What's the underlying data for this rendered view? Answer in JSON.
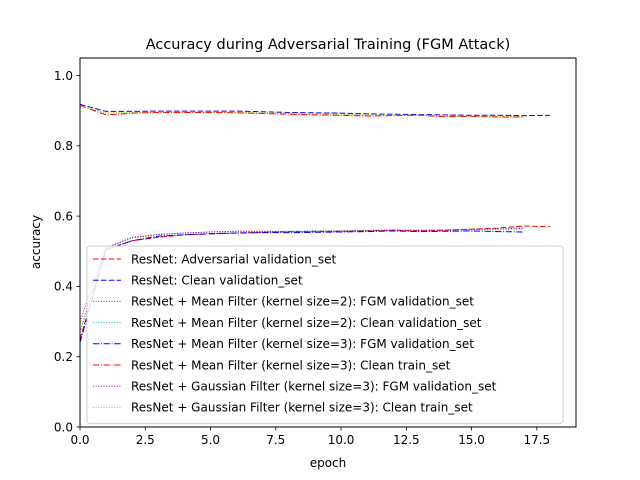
{
  "chart_data": {
    "type": "line",
    "title": "Accuracy during Adversarial Training (FGM Attack)",
    "xlabel": "epoch",
    "ylabel": "accuracy",
    "xlim": [
      0,
      19
    ],
    "ylim": [
      0,
      1.05
    ],
    "xticks": [
      0.0,
      2.5,
      5.0,
      7.5,
      10.0,
      12.5,
      15.0,
      17.5
    ],
    "xtick_labels": [
      "0.0",
      "2.5",
      "5.0",
      "7.5",
      "10.0",
      "12.5",
      "15.0",
      "17.5"
    ],
    "yticks": [
      0.0,
      0.2,
      0.4,
      0.6,
      0.8,
      1.0
    ],
    "ytick_labels": [
      "0.0",
      "0.2",
      "0.4",
      "0.6",
      "0.8",
      "1.0"
    ],
    "grid": false,
    "legend_position": "lower-left",
    "series": [
      {
        "name": "ResNet: Adversarial validation_set",
        "color": "#ff0000",
        "dash": "dashed",
        "x": [
          0,
          1,
          2,
          3,
          4,
          5,
          6,
          7,
          8,
          9,
          10,
          11,
          12,
          13,
          14,
          15,
          16,
          17,
          18
        ],
        "y": [
          0.25,
          0.505,
          0.53,
          0.54,
          0.547,
          0.55,
          0.552,
          0.554,
          0.556,
          0.556,
          0.557,
          0.558,
          0.56,
          0.558,
          0.56,
          0.563,
          0.566,
          0.572,
          0.57
        ]
      },
      {
        "name": "ResNet: Clean validation_set",
        "color": "#0000ff",
        "dash": "dashed",
        "x": [
          0,
          1,
          2,
          3,
          4,
          5,
          6,
          7,
          8,
          9,
          10,
          11,
          12,
          13,
          14,
          15,
          16,
          17,
          18
        ],
        "y": [
          0.918,
          0.898,
          0.898,
          0.899,
          0.899,
          0.899,
          0.899,
          0.897,
          0.895,
          0.894,
          0.893,
          0.891,
          0.89,
          0.889,
          0.888,
          0.887,
          0.887,
          0.886,
          0.887
        ]
      },
      {
        "name": "ResNet + Mean Filter (kernel size=2): FGM validation_set",
        "color": "#008000",
        "dash": "dotted",
        "x": [
          0,
          1,
          2,
          3,
          4,
          5,
          6,
          7,
          8,
          9,
          10,
          11,
          12,
          13,
          14,
          15,
          16,
          17
        ],
        "y": [
          0.27,
          0.51,
          0.54,
          0.548,
          0.552,
          0.555,
          0.557,
          0.556,
          0.557,
          0.558,
          0.558,
          0.559,
          0.561,
          0.56,
          0.561,
          0.562,
          0.564,
          0.566
        ]
      },
      {
        "name": "ResNet + Mean Filter (kernel size=2): Clean validation_set",
        "color": "#00bfbf",
        "dash": "dotted",
        "x": [
          0,
          1,
          2,
          3,
          4,
          5,
          6,
          7,
          8,
          9,
          10,
          11,
          12,
          13,
          14,
          15,
          16,
          17
        ],
        "y": [
          0.915,
          0.893,
          0.895,
          0.896,
          0.896,
          0.896,
          0.895,
          0.894,
          0.892,
          0.891,
          0.889,
          0.888,
          0.888,
          0.886,
          0.885,
          0.884,
          0.883,
          0.882
        ]
      },
      {
        "name": "ResNet + Mean Filter (kernel size=3): FGM validation_set",
        "color": "#0000ff",
        "dash": "dashdot",
        "x": [
          0,
          1,
          2,
          3,
          4,
          5,
          6,
          7,
          8,
          9,
          10,
          11,
          12,
          13,
          14,
          15,
          16,
          17
        ],
        "y": [
          0.24,
          0.505,
          0.53,
          0.543,
          0.547,
          0.55,
          0.552,
          0.553,
          0.553,
          0.554,
          0.555,
          0.556,
          0.558,
          0.556,
          0.557,
          0.558,
          0.556,
          0.555
        ]
      },
      {
        "name": "ResNet + Mean Filter (kernel size=3): Clean train_set",
        "color": "#ff0000",
        "dash": "dashdot",
        "x": [
          0,
          1,
          2,
          3,
          4,
          5,
          6,
          7,
          8,
          9,
          10,
          11,
          12,
          13,
          14,
          15,
          16,
          17
        ],
        "y": [
          0.915,
          0.888,
          0.893,
          0.895,
          0.895,
          0.895,
          0.894,
          0.892,
          0.89,
          0.888,
          0.887,
          0.885,
          0.886,
          0.887,
          0.883,
          0.884,
          0.882,
          0.882
        ]
      },
      {
        "name": "ResNet + Gaussian Filter (kernel size=3): FGM validation_set",
        "color": "#bf00bf",
        "dash": "dotted",
        "x": [
          0,
          1,
          2,
          3,
          4,
          5,
          6,
          7,
          8,
          9,
          10,
          11,
          12,
          13,
          14,
          15,
          16,
          17
        ],
        "y": [
          0.3,
          0.51,
          0.538,
          0.548,
          0.552,
          0.555,
          0.557,
          0.557,
          0.556,
          0.557,
          0.558,
          0.559,
          0.56,
          0.559,
          0.56,
          0.562,
          0.563,
          0.564
        ]
      },
      {
        "name": "ResNet + Gaussian Filter (kernel size=3): Clean train_set",
        "color": "#bfbf00",
        "dash": "dotted",
        "x": [
          0,
          1,
          2,
          3,
          4,
          5,
          6,
          7,
          8,
          9,
          10,
          11,
          12,
          13,
          14,
          15,
          16,
          17
        ],
        "y": [
          0.915,
          0.893,
          0.896,
          0.897,
          0.897,
          0.897,
          0.896,
          0.895,
          0.893,
          0.891,
          0.89,
          0.889,
          0.888,
          0.887,
          0.886,
          0.885,
          0.884,
          0.884
        ]
      }
    ]
  }
}
